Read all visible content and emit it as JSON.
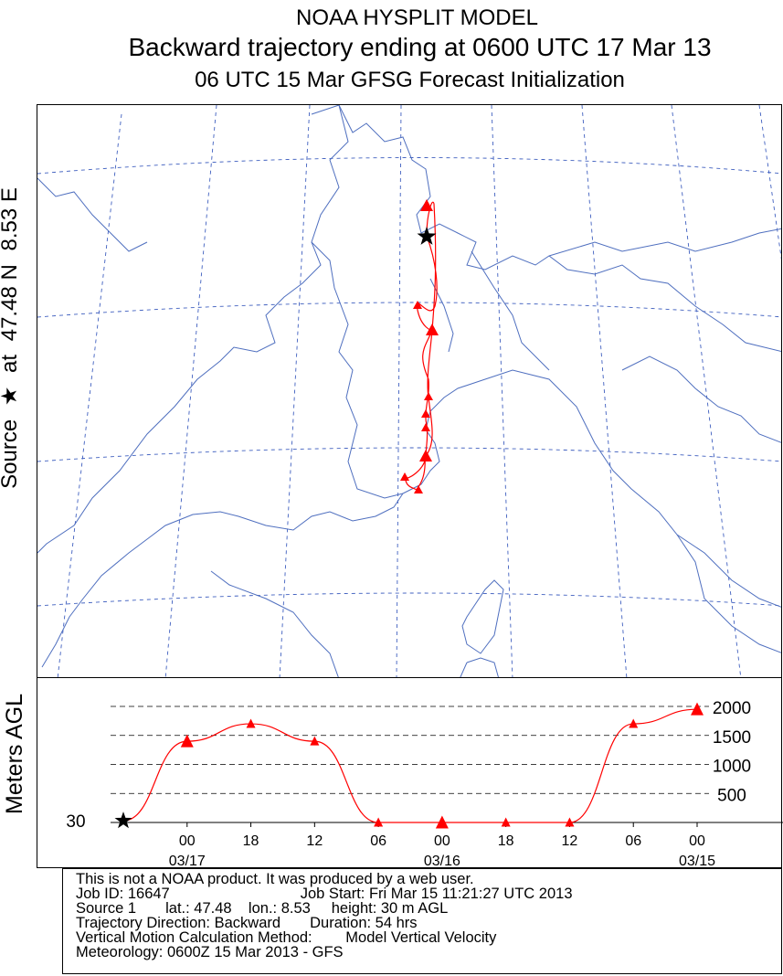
{
  "header": {
    "line1": "NOAA HYSPLIT MODEL",
    "line2": "Backward trajectory ending at 0600 UTC 17 Mar 13",
    "line3": "06 UTC 15 Mar    GFSG  Forecast Initialization"
  },
  "side_label": {
    "source": "Source",
    "at": "at",
    "lat": "47.48 N",
    "lon": "8.53 E",
    "star": "★"
  },
  "colors": {
    "trajectory": "#ff0000",
    "map_lines": "#4f6fbf",
    "grid_lines": "#3f5fbf",
    "axis_lines": "#000000"
  },
  "chart_data": [
    {
      "type": "map",
      "source": {
        "lat": 47.48,
        "lon": 8.53
      },
      "markers_hourly": 6,
      "markers_large_every_hours": 12,
      "trajectory_points": [
        {
          "hour": 0,
          "marker": "star"
        },
        {
          "hour": 6,
          "marker": "triangle-large"
        },
        {
          "hour": 12,
          "marker": "triangle-small"
        },
        {
          "hour": 18,
          "marker": "triangle-large"
        },
        {
          "hour": 24,
          "marker": "triangle-small"
        },
        {
          "hour": 30,
          "marker": "triangle-small"
        },
        {
          "hour": 36,
          "marker": "triangle-small"
        },
        {
          "hour": 42,
          "marker": "triangle-large"
        },
        {
          "hour": 48,
          "marker": "triangle-small"
        },
        {
          "hour": 54,
          "marker": "triangle-small"
        }
      ]
    },
    {
      "type": "line",
      "ylabel": "Meters AGL",
      "y_ticks": [
        500,
        1000,
        1500,
        2000
      ],
      "ylim": [
        0,
        2200
      ],
      "start_label": "30",
      "x_tick_labels": [
        "00",
        "18",
        "12",
        "06",
        "00",
        "18",
        "12",
        "06",
        "00"
      ],
      "x_date_labels": [
        {
          "tick_index": 0,
          "label": "03/17"
        },
        {
          "tick_index": 4,
          "label": "03/16"
        },
        {
          "tick_index": 8,
          "label": "03/15"
        }
      ],
      "series": [
        {
          "points": [
            {
              "hours_back": 0,
              "height": 30,
              "marker": "star"
            },
            {
              "hours_back": 6,
              "height": 1400,
              "marker": "triangle-large"
            },
            {
              "hours_back": 12,
              "height": 1700,
              "marker": "triangle-small"
            },
            {
              "hours_back": 18,
              "height": 1400,
              "marker": "triangle-small"
            },
            {
              "hours_back": 24,
              "height": 0,
              "marker": "triangle-small"
            },
            {
              "hours_back": 30,
              "height": 0,
              "marker": "triangle-large"
            },
            {
              "hours_back": 36,
              "height": 0,
              "marker": "triangle-small"
            },
            {
              "hours_back": 42,
              "height": 0,
              "marker": "triangle-small"
            },
            {
              "hours_back": 48,
              "height": 1700,
              "marker": "triangle-small"
            },
            {
              "hours_back": 54,
              "height": 1950,
              "marker": "triangle-large"
            }
          ]
        }
      ]
    }
  ],
  "info": {
    "disclaimer": "This is not a NOAA product. It was produced by a web user.",
    "job_id": "Job ID: 16647",
    "job_start": "Job Start: Fri Mar 15 11:21:27 UTC 2013",
    "source_line": "Source 1       lat.: 47.48    lon.: 8.53     height: 30 m AGL",
    "direction_line": "Trajectory Direction: Backward       Duration: 54 hrs",
    "vertical_line": "Vertical Motion Calculation Method:        Model Vertical Velocity",
    "meteorology_line": "Meteorology: 0600Z 15 Mar 2013 - GFS"
  }
}
